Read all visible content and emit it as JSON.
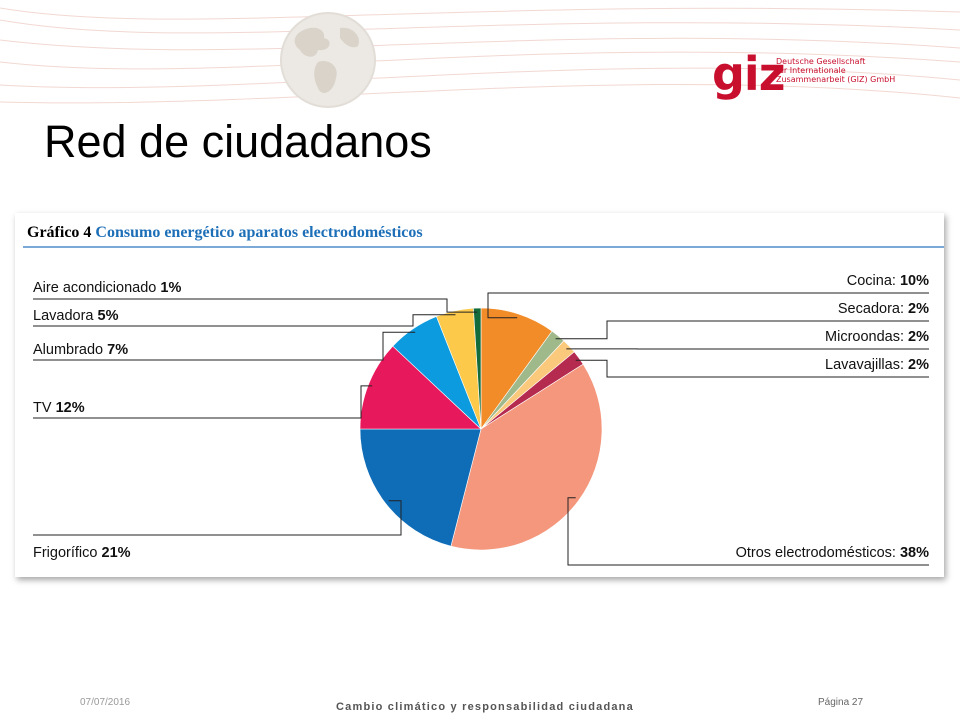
{
  "slide": {
    "title": "Red de ciudadanos"
  },
  "logo": {
    "word": "giz",
    "lines": [
      "Deutsche Gesellschaft",
      "für Internationale",
      "Zusammenarbeit (GIZ) GmbH"
    ]
  },
  "chart_header": {
    "prefix": "Gráfico 4",
    "title": "Consumo energético aparatos electrodomésticos"
  },
  "chart_data": {
    "type": "pie",
    "title": "Consumo energético aparatos electrodomésticos",
    "slices": [
      {
        "label": "Cocina",
        "value": 10,
        "color": "#f28c28"
      },
      {
        "label": "Secadora",
        "value": 2,
        "color": "#9fb98a"
      },
      {
        "label": "Microondas",
        "value": 2,
        "color": "#fbc97b"
      },
      {
        "label": "Lavavajillas",
        "value": 2,
        "color": "#b52a4f"
      },
      {
        "label": "Otros electrodomésticos",
        "value": 38,
        "color": "#f4977c"
      },
      {
        "label": "Frigorífico",
        "value": 21,
        "color": "#0f6db8"
      },
      {
        "label": "TV",
        "value": 12,
        "color": "#e8185c"
      },
      {
        "label": "Alumbrado",
        "value": 7,
        "color": "#0d9be0"
      },
      {
        "label": "Lavadora",
        "value": 5,
        "color": "#fcc94b"
      },
      {
        "label": "Aire acondicionado",
        "value": 1,
        "color": "#136b3c"
      }
    ]
  },
  "footer": {
    "date": "07/07/2016",
    "center": "Cambio climático y responsabilidad ciudadana",
    "page": "Página 27"
  }
}
